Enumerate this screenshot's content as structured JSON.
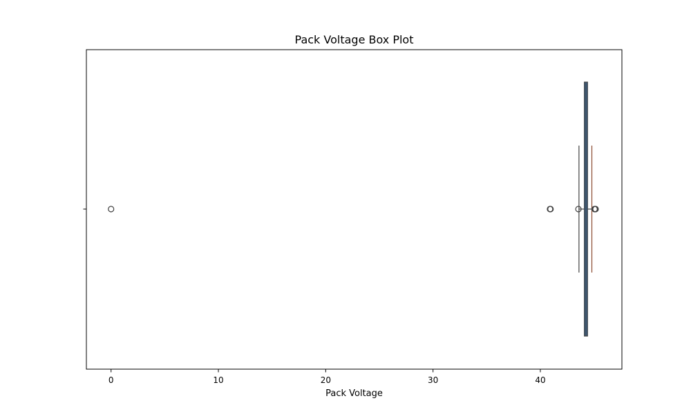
{
  "chart_data": {
    "type": "box",
    "orientation": "horizontal",
    "title": "Pack Voltage Box Plot",
    "xlabel": "Pack Voltage",
    "ylabel": "",
    "xlim": [
      -2.3,
      47.6
    ],
    "xticks": [
      0,
      10,
      20,
      30,
      40
    ],
    "grid": false,
    "legend": "none",
    "box": {
      "q1": 44.1,
      "median": 44.25,
      "q3": 44.4,
      "whisker_low": 43.6,
      "whisker_high": 44.8,
      "outliers": [
        0.0,
        40.9,
        40.95,
        43.55,
        45.05,
        45.1,
        45.15
      ]
    },
    "colors": {
      "box_fill": "#3d6a98",
      "box_edge": "#3f3f3f",
      "whisker": "#3f3f3f",
      "whisker_high": "#8b4a2f",
      "outlier_edge": "#3f3f3f"
    }
  }
}
